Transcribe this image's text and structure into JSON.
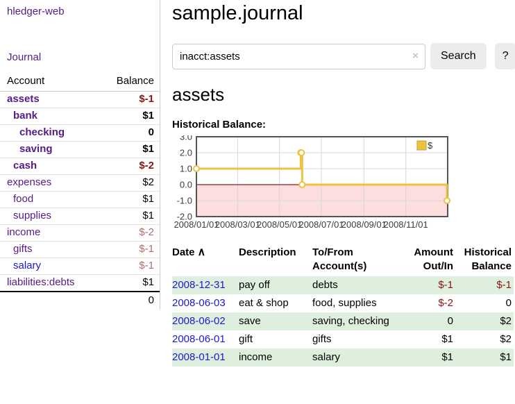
{
  "sidebar": {
    "app_title": "hledger-web",
    "nav": {
      "journal_label": "Journal"
    },
    "accounts_table": {
      "headers": {
        "account": "Account",
        "balance": "Balance"
      },
      "rows": [
        {
          "account": "assets",
          "depth": 0,
          "bold": true,
          "link_color": "purple",
          "balance": "$-1",
          "balance_class": "neg"
        },
        {
          "account": "bank",
          "depth": 1,
          "bold": true,
          "link_color": "purple",
          "balance": "$1",
          "balance_class": ""
        },
        {
          "account": "checking",
          "depth": 2,
          "bold": true,
          "link_color": "purple",
          "balance": "0",
          "balance_class": ""
        },
        {
          "account": "saving",
          "depth": 2,
          "bold": true,
          "link_color": "purple",
          "balance": "$1",
          "balance_class": ""
        },
        {
          "account": "cash",
          "depth": 1,
          "bold": true,
          "link_color": "purple",
          "balance": "$-2",
          "balance_class": "neg"
        },
        {
          "account": "expenses",
          "depth": 0,
          "bold": false,
          "link_color": "purple",
          "balance": "$2",
          "balance_class": ""
        },
        {
          "account": "food",
          "depth": 1,
          "bold": false,
          "link_color": "purple",
          "balance": "$1",
          "balance_class": ""
        },
        {
          "account": "supplies",
          "depth": 1,
          "bold": false,
          "link_color": "purple",
          "balance": "$1",
          "balance_class": ""
        },
        {
          "account": "income",
          "depth": 0,
          "bold": false,
          "link_color": "purple",
          "balance": "$-2",
          "balance_class": "negsoft"
        },
        {
          "account": "gifts",
          "depth": 1,
          "bold": false,
          "link_color": "purple",
          "balance": "$-1",
          "balance_class": "negsoft"
        },
        {
          "account": "salary",
          "depth": 1,
          "bold": false,
          "link_color": "blue",
          "balance": "$-1",
          "balance_class": "negsoft"
        },
        {
          "account": "liabilities:debts",
          "depth": 0,
          "bold": false,
          "link_color": "purple",
          "balance": "$1",
          "balance_class": ""
        }
      ],
      "total": "0"
    }
  },
  "header": {
    "title": "sample.journal"
  },
  "search": {
    "query": "inacct:assets",
    "clear_icon": "×",
    "search_label": "Search",
    "help_label": "?"
  },
  "account_page": {
    "heading": "assets",
    "chart_label": "Historical Balance:"
  },
  "chart_data": {
    "type": "line",
    "step": true,
    "title": "Historical Balance:",
    "series": [
      {
        "name": "$",
        "color": "#edc240",
        "points": [
          [
            "2008-01-01",
            1
          ],
          [
            "2008-06-01",
            2
          ],
          [
            "2008-06-02",
            2
          ],
          [
            "2008-06-03",
            0
          ],
          [
            "2008-12-31",
            -1
          ]
        ]
      }
    ],
    "ylim": [
      -2,
      3
    ],
    "y_ticks": [
      3.0,
      2.0,
      1.0,
      0.0,
      -1.0,
      -2.0
    ],
    "x_range": [
      "2008-01-01",
      "2009-01-01"
    ],
    "x_ticks": [
      {
        "date": "2008-01-01",
        "label": "2008/01/01"
      },
      {
        "date": "2008-03-01",
        "label": "2008/03/01"
      },
      {
        "date": "2008-05-01",
        "label": "2008/05/01"
      },
      {
        "date": "2008-07-01",
        "label": "2008/07/01"
      },
      {
        "date": "2008-09-01",
        "label": "2008/09/01"
      },
      {
        "date": "2008-11-01",
        "label": "2008/11/01"
      }
    ],
    "grid": true,
    "legend_position": "top-right",
    "negative_region_color": "#fcdede",
    "zero_line_color": "#8b1c1c",
    "marker_fill": "#ffffff"
  },
  "register_table": {
    "sort_icon": "∧",
    "headers": [
      {
        "label": "Date"
      },
      {
        "label": "Description"
      },
      {
        "label": "To/From\nAccount(s)"
      },
      {
        "label": "Amount\nOut/In",
        "align": "right"
      },
      {
        "label": "Historical\nBalance",
        "align": "right"
      }
    ],
    "rows": [
      {
        "date": "2008-12-31",
        "description": "pay off",
        "accounts": "debts",
        "amount": "$-1",
        "amount_negative": true,
        "balance": "$-1",
        "balance_negative": true
      },
      {
        "date": "2008-06-03",
        "description": "eat & shop",
        "accounts": "food, supplies",
        "amount": "$-2",
        "amount_negative": true,
        "balance": "0",
        "balance_negative": false
      },
      {
        "date": "2008-06-02",
        "description": "save",
        "accounts": "saving, checking",
        "amount": "0",
        "amount_negative": false,
        "balance": "$2",
        "balance_negative": false
      },
      {
        "date": "2008-06-01",
        "description": "gift",
        "accounts": "gifts",
        "amount": "$1",
        "amount_negative": false,
        "balance": "$2",
        "balance_negative": false
      },
      {
        "date": "2008-01-01",
        "description": "income",
        "accounts": "salary",
        "amount": "$1",
        "amount_negative": false,
        "balance": "$1",
        "balance_negative": false
      }
    ]
  }
}
